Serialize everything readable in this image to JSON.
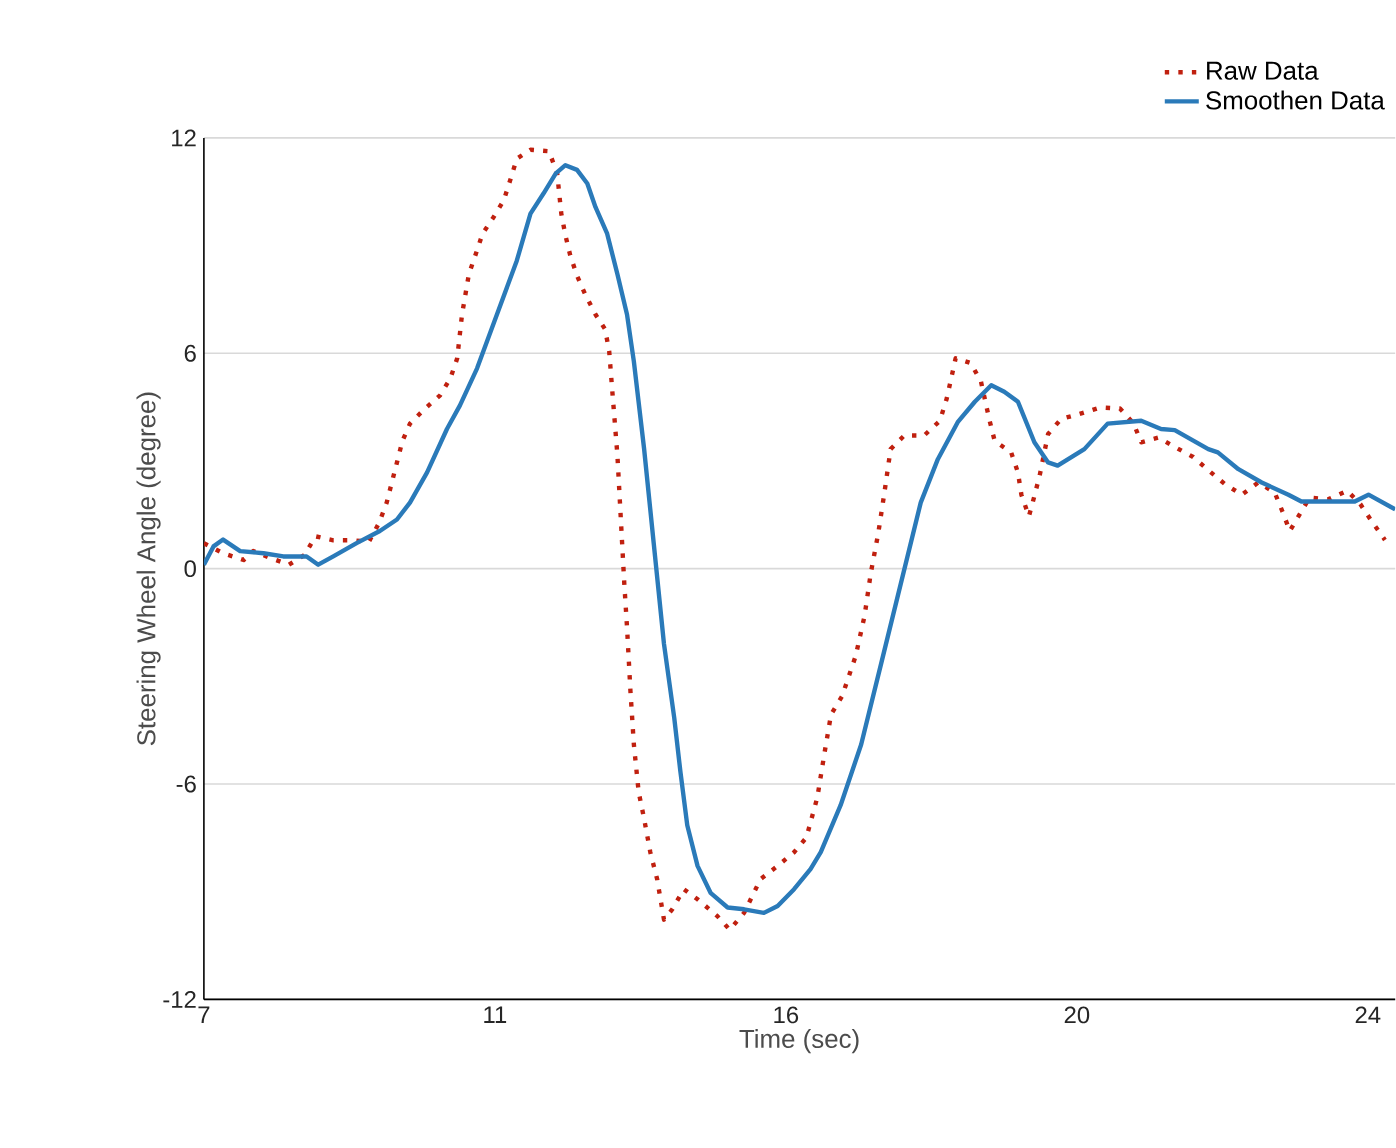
{
  "chart_data": {
    "type": "line",
    "xlabel": "Time (sec)",
    "ylabel": "Steering Wheel Angle (degree)",
    "xlim": [
      7,
      24.4
    ],
    "ylim": [
      -12,
      12
    ],
    "xticks": [
      7,
      {
        "value": 11.25,
        "label": "11"
      },
      {
        "value": 15.5,
        "label": "16"
      },
      {
        "value": 19.75,
        "label": "20"
      },
      24
    ],
    "yticks": [
      -12,
      -6,
      0,
      6,
      12
    ],
    "grid": "y",
    "legend": "top right",
    "series": [
      {
        "name": "Raw Data",
        "color": "#c0200f",
        "line_style": "dotted",
        "x": [
          7.0,
          7.28,
          7.58,
          7.72,
          7.97,
          8.24,
          8.47,
          8.63,
          8.89,
          9.18,
          9.41,
          9.56,
          9.67,
          9.82,
          9.9,
          10.01,
          10.23,
          10.45,
          10.6,
          10.7,
          10.77,
          10.87,
          10.97,
          11.07,
          11.23,
          11.38,
          11.48,
          11.57,
          11.77,
          12.04,
          12.16,
          12.22,
          12.28,
          12.35,
          12.45,
          12.57,
          12.72,
          12.86,
          12.92,
          12.97,
          13.04,
          13.09,
          13.14,
          13.18,
          13.23,
          13.28,
          13.35,
          13.43,
          13.52,
          13.62,
          13.72,
          13.84,
          14.01,
          14.21,
          14.5,
          14.68,
          14.89,
          15.13,
          15.38,
          15.62,
          15.8,
          15.96,
          16.06,
          16.16,
          16.32,
          16.52,
          16.65,
          16.74,
          16.85,
          16.94,
          17.03,
          17.23,
          17.52,
          17.75,
          17.85,
          17.98,
          18.2,
          18.35,
          18.47,
          18.55,
          18.79,
          18.89,
          18.94,
          19.05,
          19.13,
          19.21,
          19.33,
          19.52,
          19.79,
          20.09,
          20.38,
          20.58,
          20.69,
          20.94,
          21.2,
          21.45,
          21.69,
          21.91,
          22.16,
          22.4,
          22.64,
          22.76,
          22.86,
          23.0,
          23.15,
          23.42,
          23.7,
          23.89,
          24.06,
          24.25
        ],
        "values": [
          0.71,
          0.43,
          0.24,
          0.49,
          0.3,
          0.11,
          0.38,
          0.9,
          0.79,
          0.79,
          0.75,
          1.28,
          1.84,
          2.96,
          3.56,
          4.04,
          4.46,
          4.83,
          5.3,
          5.86,
          7.08,
          8.2,
          8.76,
          9.33,
          9.79,
          10.26,
          10.86,
          11.42,
          11.67,
          11.63,
          11.01,
          9.89,
          9.29,
          8.73,
          8.16,
          7.64,
          7.08,
          6.67,
          6.05,
          4.83,
          3.15,
          1.37,
          -0.41,
          -1.63,
          -3.41,
          -4.9,
          -6.22,
          -6.97,
          -7.9,
          -8.65,
          -9.78,
          -9.49,
          -8.93,
          -9.21,
          -9.68,
          -10.06,
          -9.59,
          -8.65,
          -8.28,
          -7.9,
          -7.49,
          -6.37,
          -5.19,
          -4.06,
          -3.56,
          -2.43,
          -1.31,
          -0.13,
          0.99,
          2.12,
          3.33,
          3.71,
          3.71,
          4.12,
          4.74,
          5.86,
          5.73,
          5.21,
          4.17,
          3.56,
          3.24,
          2.68,
          2.06,
          1.46,
          2.02,
          2.62,
          3.75,
          4.17,
          4.31,
          4.49,
          4.46,
          4.04,
          3.52,
          3.65,
          3.37,
          3.11,
          2.71,
          2.36,
          2.06,
          2.4,
          2.12,
          1.56,
          1.05,
          1.5,
          1.98,
          1.93,
          2.17,
          1.8,
          1.31,
          0.8
        ]
      },
      {
        "name": "Smoothen Data",
        "color": "#2a7ab9",
        "line_style": "solid",
        "x": [
          7.0,
          7.14,
          7.28,
          7.53,
          7.87,
          8.16,
          8.5,
          8.67,
          8.89,
          9.23,
          9.57,
          9.82,
          10.01,
          10.26,
          10.55,
          10.74,
          10.99,
          11.28,
          11.57,
          11.77,
          11.96,
          12.14,
          12.28,
          12.45,
          12.6,
          12.72,
          12.89,
          13.04,
          13.18,
          13.28,
          13.43,
          13.57,
          13.72,
          13.87,
          13.96,
          14.06,
          14.21,
          14.4,
          14.65,
          14.89,
          15.18,
          15.38,
          15.62,
          15.86,
          16.01,
          16.3,
          16.6,
          16.89,
          17.18,
          17.47,
          17.72,
          18.01,
          18.26,
          18.5,
          18.69,
          18.89,
          19.13,
          19.33,
          19.47,
          19.86,
          20.2,
          20.69,
          20.98,
          21.18,
          21.67,
          21.81,
          22.11,
          22.45,
          22.84,
          23.03,
          23.81,
          24.01,
          24.4
        ],
        "values": [
          0.11,
          0.62,
          0.81,
          0.49,
          0.43,
          0.34,
          0.34,
          0.11,
          0.34,
          0.71,
          1.05,
          1.37,
          1.84,
          2.68,
          3.89,
          4.55,
          5.58,
          7.08,
          8.58,
          9.89,
          10.45,
          11.01,
          11.24,
          11.11,
          10.73,
          10.07,
          9.33,
          8.2,
          7.08,
          5.77,
          3.33,
          0.71,
          -2.1,
          -4.16,
          -5.66,
          -7.15,
          -8.28,
          -9.03,
          -9.44,
          -9.49,
          -9.59,
          -9.4,
          -8.93,
          -8.37,
          -7.9,
          -6.59,
          -4.9,
          -2.66,
          -0.41,
          1.84,
          3.05,
          4.08,
          4.65,
          5.11,
          4.93,
          4.65,
          3.52,
          2.96,
          2.87,
          3.33,
          4.04,
          4.12,
          3.89,
          3.86,
          3.33,
          3.24,
          2.77,
          2.4,
          2.06,
          1.87,
          1.87,
          2.06,
          1.65
        ]
      }
    ]
  }
}
